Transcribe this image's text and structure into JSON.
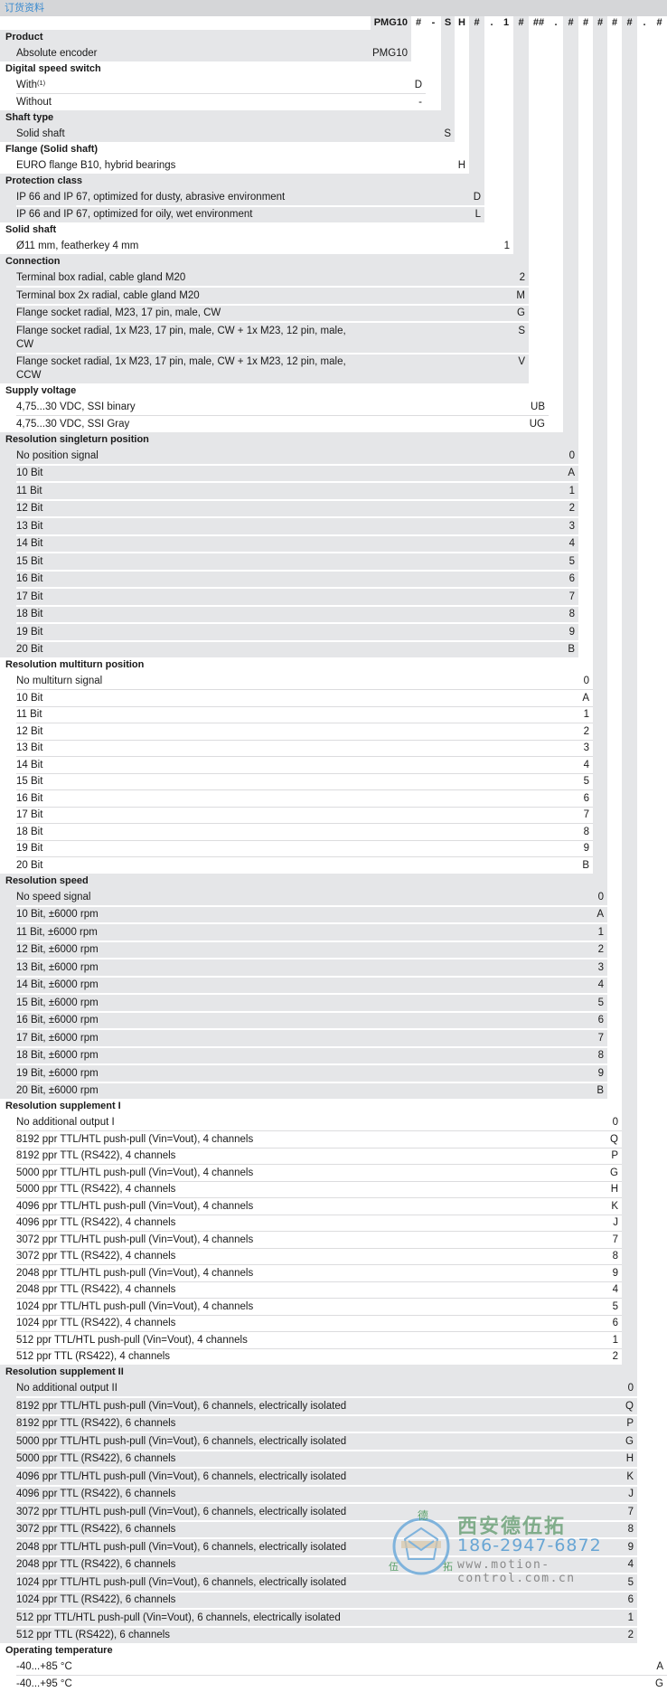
{
  "title": "订货资料",
  "colors": {
    "gray": "#e5e6e8",
    "title_bar": "#d5d6d8",
    "title_text": "#3b8bcf"
  },
  "header_codes": [
    "PMG10",
    "#",
    "-",
    "S",
    "H",
    "#",
    ".",
    "1",
    "#",
    "##",
    ".",
    "#",
    "#",
    "#",
    "#",
    "#",
    ".",
    "#"
  ],
  "sections": [
    {
      "title": "Product",
      "col": 0,
      "items": [
        {
          "label": "Absolute encoder",
          "code": "PMG10"
        }
      ]
    },
    {
      "title": "Digital speed switch",
      "col": 1,
      "items": [
        {
          "label": "With",
          "sup": "(1)",
          "code": "D"
        },
        {
          "label": "Without",
          "code": "-"
        }
      ]
    },
    {
      "title": "Shaft type",
      "col": 3,
      "items": [
        {
          "label": "Solid shaft",
          "code": "S"
        }
      ]
    },
    {
      "title": "Flange (Solid shaft)",
      "col": 4,
      "items": [
        {
          "label": "EURO flange B10, hybrid bearings",
          "code": "H"
        }
      ]
    },
    {
      "title": "Protection class",
      "col": 5,
      "items": [
        {
          "label": "IP 66 and IP 67, optimized for dusty, abrasive environment",
          "code": "D"
        },
        {
          "label": "IP 66 and IP 67, optimized for oily, wet environment",
          "code": "L"
        }
      ]
    },
    {
      "title": "Solid shaft",
      "col": 7,
      "items": [
        {
          "label": "Ø11 mm, featherkey 4 mm",
          "code": "1"
        }
      ]
    },
    {
      "title": "Connection",
      "col": 8,
      "items": [
        {
          "label": "Terminal box radial, cable gland M20",
          "code": "2"
        },
        {
          "label": "Terminal box 2x radial, cable gland M20",
          "code": "M"
        },
        {
          "label": "Flange socket radial, M23, 17 pin, male, CW",
          "code": "G"
        },
        {
          "label": "Flange socket radial, 1x M23, 17 pin, male, CW + 1x M23, 12 pin, male, CW",
          "code": "S"
        },
        {
          "label": "Flange socket radial, 1x M23, 17 pin, male, CW + 1x M23, 12 pin, male, CCW",
          "code": "V"
        }
      ]
    },
    {
      "title": "Supply voltage",
      "col": 9,
      "items": [
        {
          "label": "4,75...30 VDC, SSI binary",
          "code": "UB"
        },
        {
          "label": "4,75...30 VDC, SSI Gray",
          "code": "UG"
        }
      ]
    },
    {
      "title": "Resolution singleturn position",
      "col": 11,
      "items": [
        {
          "label": "No position signal",
          "code": "0"
        },
        {
          "label": "10 Bit",
          "code": "A"
        },
        {
          "label": "11 Bit",
          "code": "1"
        },
        {
          "label": "12 Bit",
          "code": "2"
        },
        {
          "label": "13 Bit",
          "code": "3"
        },
        {
          "label": "14 Bit",
          "code": "4"
        },
        {
          "label": "15 Bit",
          "code": "5"
        },
        {
          "label": "16 Bit",
          "code": "6"
        },
        {
          "label": "17 Bit",
          "code": "7"
        },
        {
          "label": "18 Bit",
          "code": "8"
        },
        {
          "label": "19 Bit",
          "code": "9"
        },
        {
          "label": "20 Bit",
          "code": "B"
        }
      ]
    },
    {
      "title": "Resolution multiturn position",
      "col": 12,
      "items": [
        {
          "label": "No multiturn signal",
          "code": "0"
        },
        {
          "label": "10 Bit",
          "code": "A"
        },
        {
          "label": "11 Bit",
          "code": "1"
        },
        {
          "label": "12 Bit",
          "code": "2"
        },
        {
          "label": "13 Bit",
          "code": "3"
        },
        {
          "label": "14 Bit",
          "code": "4"
        },
        {
          "label": "15 Bit",
          "code": "5"
        },
        {
          "label": "16 Bit",
          "code": "6"
        },
        {
          "label": "17 Bit",
          "code": "7"
        },
        {
          "label": "18 Bit",
          "code": "8"
        },
        {
          "label": "19 Bit",
          "code": "9"
        },
        {
          "label": "20 Bit",
          "code": "B"
        }
      ]
    },
    {
      "title": "Resolution speed",
      "col": 13,
      "items": [
        {
          "label": "No speed signal",
          "code": "0"
        },
        {
          "label": "10 Bit, ±6000 rpm",
          "code": "A"
        },
        {
          "label": "11 Bit, ±6000 rpm",
          "code": "1"
        },
        {
          "label": "12 Bit, ±6000 rpm",
          "code": "2"
        },
        {
          "label": "13 Bit, ±6000 rpm",
          "code": "3"
        },
        {
          "label": "14 Bit, ±6000 rpm",
          "code": "4"
        },
        {
          "label": "15 Bit, ±6000 rpm",
          "code": "5"
        },
        {
          "label": "16 Bit, ±6000 rpm",
          "code": "6"
        },
        {
          "label": "17 Bit, ±6000 rpm",
          "code": "7"
        },
        {
          "label": "18 Bit, ±6000 rpm",
          "code": "8"
        },
        {
          "label": "19 Bit, ±6000 rpm",
          "code": "9"
        },
        {
          "label": "20 Bit, ±6000 rpm",
          "code": "B"
        }
      ]
    },
    {
      "title": "Resolution supplement I",
      "col": 14,
      "items": [
        {
          "label": "No additional output I",
          "code": "0"
        },
        {
          "label": "8192 ppr TTL/HTL push-pull (Vin=Vout), 4 channels",
          "code": "Q"
        },
        {
          "label": "8192 ppr TTL (RS422), 4 channels",
          "code": "P"
        },
        {
          "label": "5000 ppr TTL/HTL push-pull (Vin=Vout), 4 channels",
          "code": "G"
        },
        {
          "label": "5000 ppr TTL (RS422), 4 channels",
          "code": "H"
        },
        {
          "label": "4096 ppr TTL/HTL push-pull (Vin=Vout), 4 channels",
          "code": "K"
        },
        {
          "label": "4096 ppr TTL (RS422), 4 channels",
          "code": "J"
        },
        {
          "label": "3072 ppr TTL/HTL push-pull (Vin=Vout), 4 channels",
          "code": "7"
        },
        {
          "label": "3072 ppr TTL (RS422), 4 channels",
          "code": "8"
        },
        {
          "label": "2048 ppr TTL/HTL push-pull (Vin=Vout), 4 channels",
          "code": "9"
        },
        {
          "label": "2048 ppr TTL (RS422), 4 channels",
          "code": "4"
        },
        {
          "label": "1024 ppr TTL/HTL push-pull (Vin=Vout), 4 channels",
          "code": "5"
        },
        {
          "label": "1024 ppr TTL (RS422), 4 channels",
          "code": "6"
        },
        {
          "label": "512 ppr TTL/HTL push-pull (Vin=Vout), 4 channels",
          "code": "1"
        },
        {
          "label": "512 ppr TTL (RS422), 4 channels",
          "code": "2"
        }
      ]
    },
    {
      "title": "Resolution supplement II",
      "col": 15,
      "items": [
        {
          "label": "No additional output II",
          "code": "0"
        },
        {
          "label": "8192 ppr TTL/HTL push-pull (Vin=Vout), 6 channels, electrically isolated",
          "code": "Q"
        },
        {
          "label": "8192 ppr TTL (RS422), 6 channels",
          "code": "P"
        },
        {
          "label": "5000 ppr TTL/HTL push-pull (Vin=Vout), 6 channels, electrically isolated",
          "code": "G"
        },
        {
          "label": "5000 ppr TTL (RS422), 6 channels",
          "code": "H"
        },
        {
          "label": "4096 ppr TTL/HTL push-pull (Vin=Vout), 6 channels, electrically isolated",
          "code": "K"
        },
        {
          "label": "4096 ppr TTL (RS422), 6 channels",
          "code": "J"
        },
        {
          "label": "3072 ppr TTL/HTL push-pull (Vin=Vout), 6 channels, electrically isolated",
          "code": "7"
        },
        {
          "label": "3072 ppr TTL (RS422), 6 channels",
          "code": "8"
        },
        {
          "label": "2048 ppr TTL/HTL push-pull (Vin=Vout), 6 channels, electrically isolated",
          "code": "9"
        },
        {
          "label": "2048 ppr TTL (RS422), 6 channels",
          "code": "4"
        },
        {
          "label": "1024 ppr TTL/HTL push-pull (Vin=Vout), 6 channels, electrically isolated",
          "code": "5"
        },
        {
          "label": "1024 ppr TTL (RS422), 6 channels",
          "code": "6"
        },
        {
          "label": "512 ppr TTL/HTL push-pull (Vin=Vout), 6 channels, electrically isolated",
          "code": "1"
        },
        {
          "label": "512 ppr TTL (RS422), 6 channels",
          "code": "2"
        }
      ]
    },
    {
      "title": "Operating temperature",
      "col": 17,
      "items": [
        {
          "label": "-40...+85 °C",
          "code": "A"
        },
        {
          "label": "-40...+95 °C",
          "code": "G"
        }
      ]
    }
  ],
  "watermark": {
    "company": "西安德伍拓",
    "phone": "186-2947-6872",
    "url": "www.motion-control.com.cn",
    "logo_chars": "德伍拓"
  }
}
